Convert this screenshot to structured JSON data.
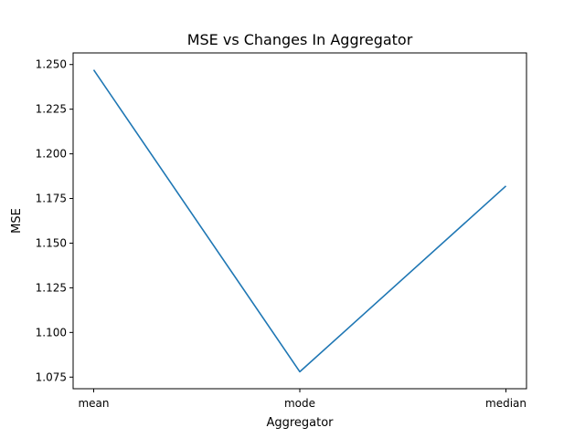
{
  "chart_data": {
    "type": "line",
    "title": "MSE vs Changes In Aggregator",
    "xlabel": "Aggregator",
    "ylabel": "MSE",
    "categories": [
      "mean",
      "mode",
      "median"
    ],
    "series": [
      {
        "values": [
          1.247,
          1.078,
          1.182
        ],
        "color": "#1f77b4"
      }
    ],
    "ylim": [
      1.0685,
      1.2565
    ],
    "yticks": [
      1.075,
      1.1,
      1.125,
      1.15,
      1.175,
      1.2,
      1.225,
      1.25
    ],
    "ytick_labels": [
      "1.075",
      "1.100",
      "1.125",
      "1.150",
      "1.175",
      "1.200",
      "1.225",
      "1.250"
    ],
    "grid": false,
    "legend": "none"
  }
}
